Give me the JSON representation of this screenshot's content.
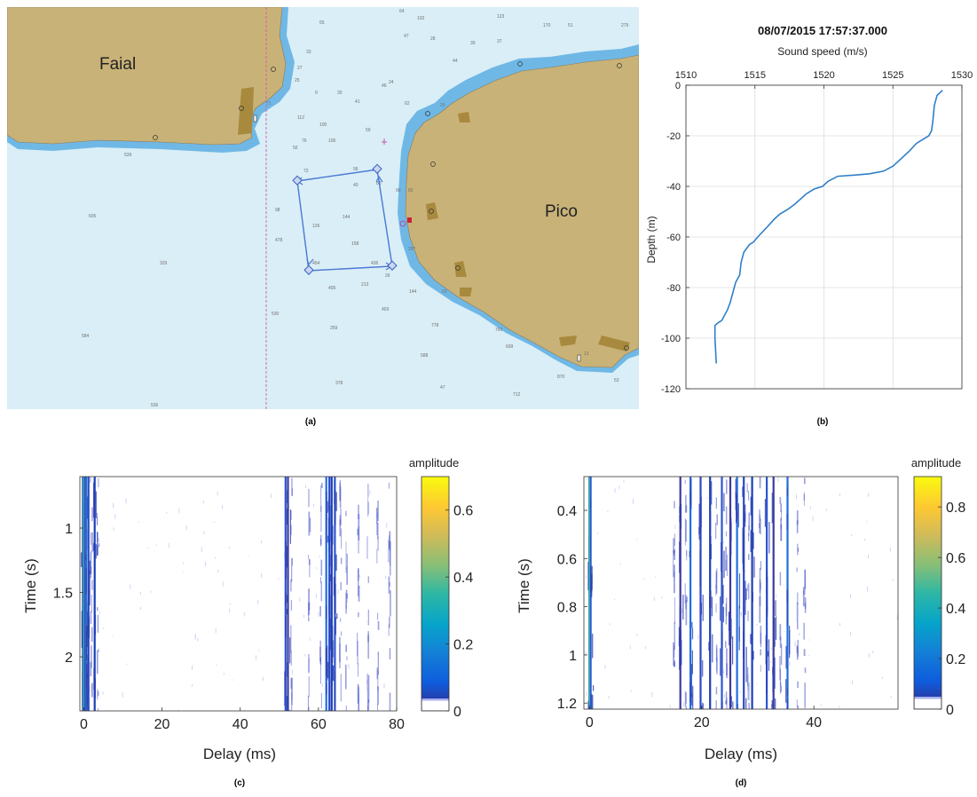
{
  "captions": {
    "a": "(a)",
    "b": "(b)",
    "c": "(c)",
    "d": "(d)"
  },
  "colors": {
    "sea": "#d9eef6",
    "shallow": "#6fb8e6",
    "land": "#c9b278",
    "land_dark": "#a88a3e",
    "route": "#4a78d6",
    "grid": "#dcdcdc",
    "profile": "#2f7fc8",
    "parula": [
      "#352a87",
      "#0f5cdd",
      "#1481d6",
      "#06a4ca",
      "#2eb7a4",
      "#87bf77",
      "#d1bb59",
      "#fec832",
      "#f9fb0e"
    ]
  },
  "map": {
    "faial_label": "Faial",
    "pico_label": "Pico",
    "soundings": [
      "64",
      "102",
      "123",
      "170",
      "51",
      "279",
      "65",
      "47",
      "28",
      "39",
      "37",
      "33",
      "44",
      "27",
      "25",
      "9",
      "30",
      "41",
      "46",
      "62",
      "24",
      "71",
      "112",
      "100",
      "76",
      "106",
      "59",
      "56",
      "72",
      "96",
      "83",
      "40",
      "90",
      "98",
      "126",
      "144",
      "478",
      "158",
      "329",
      "454",
      "436",
      "287",
      "405",
      "213",
      "144",
      "63",
      "403",
      "530",
      "259",
      "584",
      "778",
      "769",
      "699",
      "588",
      "47",
      "378",
      "712",
      "536",
      "605",
      "539",
      "870",
      "53",
      "82",
      "26",
      "20",
      "13"
    ]
  },
  "chart_data": [
    {
      "id": "b",
      "type": "line",
      "title": "08/07/2015 17:57:37.000",
      "xlabel": "Sound speed (m/s)",
      "ylabel": "Depth (m)",
      "xlim": [
        1510,
        1530
      ],
      "ylim": [
        -120,
        0
      ],
      "xticks": [
        1510,
        1515,
        1520,
        1525,
        1530
      ],
      "yticks": [
        0,
        -20,
        -40,
        -60,
        -80,
        -100,
        -120
      ],
      "x_axis_position": "top",
      "grid": true,
      "series": [
        {
          "x": [
            1528.6,
            1528.2,
            1528.0,
            1527.9,
            1527.8,
            1527.6,
            1527.3,
            1526.7,
            1526.2,
            1525.6,
            1525.0,
            1524.3,
            1523.3,
            1522.3,
            1521.0,
            1520.3,
            1519.9,
            1519.3,
            1518.7,
            1518.3,
            1517.9,
            1517.4,
            1516.8,
            1516.4,
            1515.9,
            1515.2,
            1514.9,
            1514.6,
            1514.2,
            1514.0,
            1513.9,
            1513.6,
            1513.4,
            1513.2,
            1513.0,
            1512.8,
            1512.6,
            1512.3,
            1512.1,
            1512.1,
            1512.2
          ],
          "y": [
            -2,
            -4,
            -8,
            -14,
            -18,
            -20,
            -21,
            -23,
            -26,
            -29,
            -32,
            -34,
            -35,
            -35.5,
            -36,
            -38,
            -40,
            -41,
            -43,
            -45,
            -47,
            -49,
            -51,
            -53,
            -56,
            -60,
            -62,
            -63,
            -66,
            -70,
            -75,
            -78,
            -82,
            -86,
            -89,
            -91,
            -93,
            -94,
            -95,
            -100,
            -110
          ]
        }
      ]
    },
    {
      "id": "c",
      "type": "heatmap",
      "xlabel": "Delay (ms)",
      "ylabel": "Time (s)",
      "xlim": [
        -1,
        80
      ],
      "ylim": [
        0.6,
        2.42
      ],
      "xticks": [
        0,
        20,
        40,
        60,
        80
      ],
      "yticks": [
        1,
        1.5,
        2
      ],
      "colorbar": {
        "label": "amplitude",
        "ticks": [
          0,
          0.2,
          0.4,
          0.6
        ],
        "max": 0.7
      },
      "strong_arrival_delays_ms": [
        -0.2,
        0.0,
        0.3,
        0.6,
        1.2,
        2.8,
        51.6,
        52.2,
        62.0,
        62.8,
        63.4,
        64.2
      ],
      "weak_arrival_delays_ms": [
        1.8,
        3.5,
        53.0,
        57.5,
        60.5,
        65.5,
        67.0,
        70.0,
        72.5,
        75.0,
        78.0
      ]
    },
    {
      "id": "d",
      "type": "heatmap",
      "xlabel": "Delay (ms)",
      "ylabel": "Time (s)",
      "xlim": [
        -1,
        55
      ],
      "ylim": [
        0.26,
        1.225
      ],
      "xticks": [
        0,
        20,
        40
      ],
      "yticks": [
        0.4,
        0.6,
        0.8,
        1,
        1.2
      ],
      "colorbar": {
        "label": "amplitude",
        "ticks": [
          0,
          0.2,
          0.4,
          0.6,
          0.8
        ],
        "max": 0.92
      },
      "strong_arrival_delays_ms": [
        0.0,
        0.2,
        16.2,
        18.0,
        19.8,
        21.5,
        23.6,
        25.1,
        26.3,
        27.5,
        29.0,
        31.6,
        32.8,
        35.3
      ],
      "weak_arrival_delays_ms": [
        15.0,
        17.1,
        22.5,
        24.3,
        28.2,
        30.3,
        34.0,
        37.0,
        38.2
      ]
    }
  ]
}
